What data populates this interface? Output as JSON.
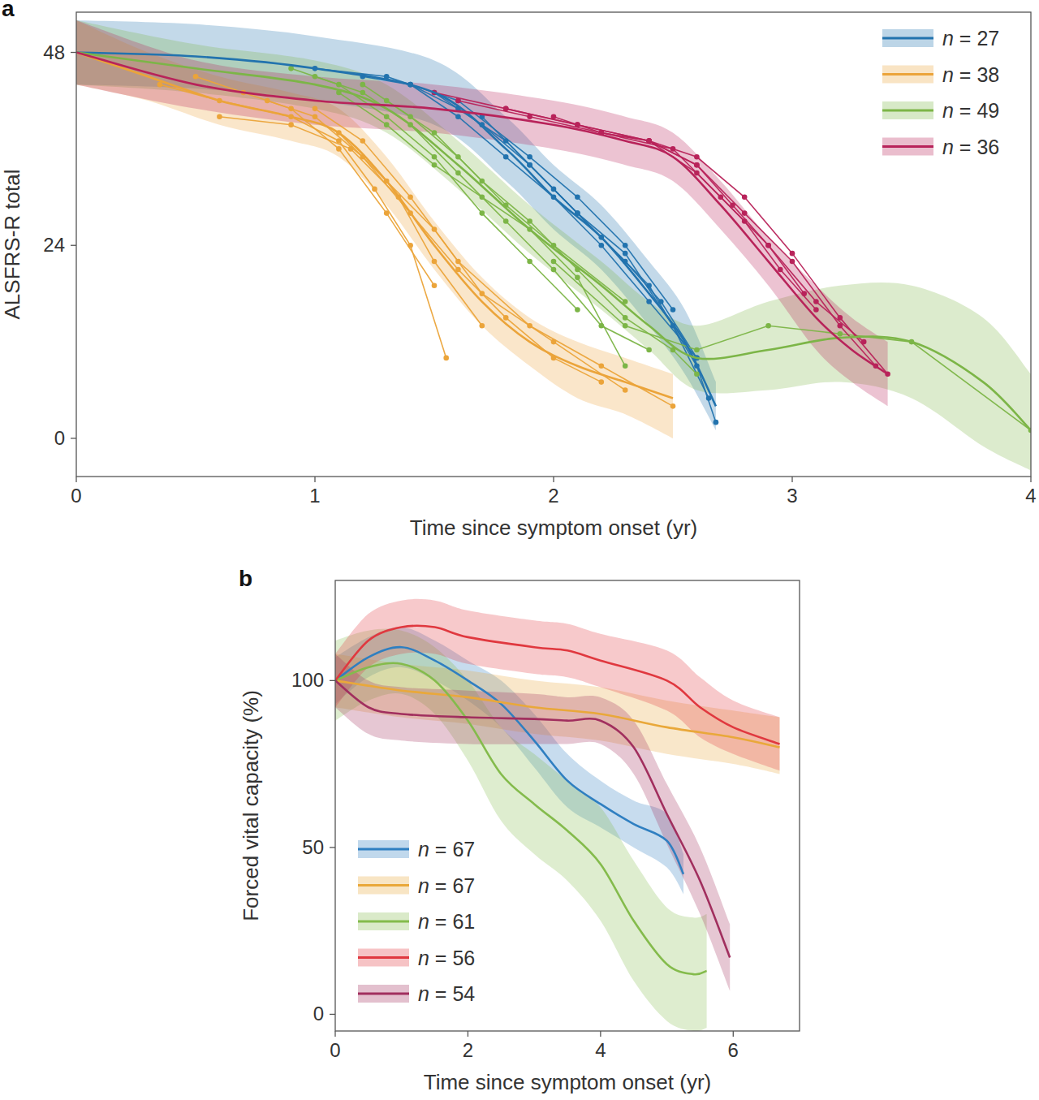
{
  "chart_data": [
    {
      "type": "line",
      "title": "a",
      "x_label": "Time since symptom onset (yr)",
      "y_label": "ALSFRS-R total",
      "xlim": [
        0,
        4
      ],
      "xticks": [
        0,
        1,
        2,
        3,
        4
      ],
      "ylim": [
        -4.75,
        53
      ],
      "yticks": [
        0,
        24,
        48
      ],
      "legend": "upper right",
      "series": [
        {
          "name": "n = 27",
          "color": "#2273ae",
          "x": [
            0,
            0.5,
            1.0,
            1.5,
            1.8,
            2.0,
            2.2,
            2.4,
            2.55,
            2.68
          ],
          "values": [
            48,
            47.5,
            46,
            43,
            36,
            30,
            25,
            18,
            12,
            4
          ],
          "lower": [
            44,
            43.5,
            42,
            39,
            32,
            26,
            21,
            14,
            8,
            1
          ],
          "upper": [
            52,
            51.5,
            50,
            47,
            40,
            34,
            29,
            22,
            16,
            7
          ],
          "patients": [
            {
              "x": [
                1.2,
                1.4,
                1.6,
                1.8,
                2.0,
                2.2,
                2.4,
                2.6
              ],
              "values": [
                45,
                44,
                40,
                35,
                30,
                24,
                17,
                10
              ]
            },
            {
              "x": [
                1.4,
                1.6,
                1.8,
                2.0,
                2.2,
                2.4,
                2.6,
                2.68
              ],
              "values": [
                44,
                41,
                37,
                31,
                25,
                19,
                9,
                2
              ]
            },
            {
              "x": [
                1.0,
                1.3,
                1.6,
                1.9,
                2.1,
                2.3,
                2.5
              ],
              "values": [
                46,
                45,
                42,
                35,
                30,
                24,
                16
              ]
            },
            {
              "x": [
                1.5,
                1.7,
                1.9,
                2.1,
                2.3,
                2.45,
                2.6
              ],
              "values": [
                43,
                39,
                34,
                28,
                22,
                17,
                10
              ]
            },
            {
              "x": [
                1.7,
                1.9,
                2.1,
                2.3,
                2.5,
                2.65
              ],
              "values": [
                40,
                34,
                28,
                23,
                14,
                5
              ]
            }
          ]
        },
        {
          "name": "n = 38",
          "color": "#eba43a",
          "x": [
            0,
            0.3,
            0.6,
            0.9,
            1.1,
            1.3,
            1.5,
            1.7,
            1.9,
            2.1,
            2.3,
            2.5
          ],
          "values": [
            48,
            45,
            42,
            40,
            38,
            32,
            24,
            17,
            12,
            9,
            7,
            5
          ],
          "lower": [
            44,
            42,
            39,
            37,
            35,
            29,
            21,
            14,
            9,
            5,
            3,
            0
          ],
          "upper": [
            52,
            48,
            45,
            43,
            41,
            35,
            27,
            20,
            15,
            12,
            10,
            8
          ],
          "patients": [
            {
              "x": [
                0.5,
                0.7,
                0.9,
                1.1,
                1.3,
                1.5
              ],
              "values": [
                45,
                43,
                41,
                36,
                28,
                19
              ]
            },
            {
              "x": [
                0.35,
                0.6,
                0.9,
                1.1,
                1.25,
                1.4,
                1.55
              ],
              "values": [
                44,
                42,
                40,
                37,
                31,
                24,
                10
              ]
            },
            {
              "x": [
                0.8,
                1.0,
                1.2,
                1.4,
                1.6,
                1.8,
                2.0,
                2.2
              ],
              "values": [
                42,
                40,
                35,
                28,
                21,
                15,
                10,
                7
              ]
            },
            {
              "x": [
                1.0,
                1.2,
                1.4,
                1.6,
                1.9,
                2.2,
                2.5
              ],
              "values": [
                41,
                37,
                30,
                22,
                14,
                9,
                4
              ]
            },
            {
              "x": [
                0.6,
                0.9,
                1.15,
                1.35,
                1.5,
                1.7
              ],
              "values": [
                40,
                39,
                36,
                30,
                22,
                14
              ]
            },
            {
              "x": [
                1.1,
                1.3,
                1.5,
                1.7,
                2.0,
                2.3
              ],
              "values": [
                38,
                32,
                26,
                18,
                12,
                6
              ]
            }
          ]
        },
        {
          "name": "n = 49",
          "color": "#7cb547",
          "x": [
            0,
            0.5,
            1.0,
            1.3,
            1.6,
            1.9,
            2.2,
            2.4,
            2.6,
            2.9,
            3.2,
            3.5,
            3.8,
            4.0
          ],
          "values": [
            48,
            46,
            44,
            41,
            34,
            26,
            19,
            14,
            10,
            11,
            12.5,
            12,
            7,
            1
          ],
          "lower": [
            44,
            43,
            41,
            38,
            31,
            23,
            16,
            11,
            6,
            6,
            7,
            5,
            -1,
            -4
          ],
          "upper": [
            52,
            49,
            47,
            44,
            37,
            29,
            22,
            17,
            14,
            17,
            19,
            19,
            15,
            8
          ],
          "patients": [
            {
              "x": [
                0.9,
                1.1,
                1.3,
                1.5,
                1.7,
                1.9,
                2.1
              ],
              "values": [
                46,
                44,
                40,
                35,
                28,
                22,
                16
              ]
            },
            {
              "x": [
                1.0,
                1.2,
                1.4,
                1.6,
                1.8,
                2.0,
                2.2,
                2.4
              ],
              "values": [
                45,
                43,
                39,
                33,
                27,
                21,
                14,
                11
              ]
            },
            {
              "x": [
                1.3,
                1.5,
                1.7,
                1.9,
                2.1,
                2.3,
                2.5,
                2.6
              ],
              "values": [
                42,
                38,
                32,
                27,
                21,
                15,
                11,
                8
              ]
            },
            {
              "x": [
                1.2,
                1.4,
                1.6,
                1.8,
                2.0,
                2.3
              ],
              "values": [
                44,
                40,
                35,
                29,
                24,
                17
              ]
            },
            {
              "x": [
                2.0,
                2.3,
                2.6,
                2.9,
                3.2,
                3.5,
                4.0
              ],
              "values": [
                22,
                14,
                11,
                14,
                13,
                12,
                1
              ]
            },
            {
              "x": [
                1.1,
                1.3,
                1.5,
                1.7,
                1.9,
                2.1,
                2.3
              ],
              "values": [
                43,
                39,
                34,
                30,
                26,
                20,
                9
              ]
            }
          ]
        },
        {
          "name": "n = 36",
          "color": "#b8235a",
          "x": [
            0,
            0.5,
            1.0,
            1.5,
            2.0,
            2.3,
            2.5,
            2.7,
            2.9,
            3.1,
            3.25,
            3.4
          ],
          "values": [
            48,
            44,
            42,
            41,
            39,
            37,
            35,
            29,
            22,
            15,
            11,
            8
          ],
          "lower": [
            44,
            41,
            39,
            38,
            36,
            34,
            32,
            26,
            19,
            11,
            7,
            4
          ],
          "upper": [
            52,
            47,
            45,
            44,
            42,
            40,
            38,
            32,
            25,
            19,
            15,
            12
          ],
          "patients": [
            {
              "x": [
                1.6,
                1.9,
                2.2,
                2.5,
                2.7,
                2.9,
                3.1,
                3.3
              ],
              "values": [
                42,
                40,
                38,
                36,
                30,
                24,
                17,
                12
              ]
            },
            {
              "x": [
                2.0,
                2.2,
                2.4,
                2.6,
                2.8,
                3.0,
                3.2,
                3.4
              ],
              "values": [
                40,
                38,
                37,
                35,
                30,
                23,
                15,
                8
              ]
            },
            {
              "x": [
                1.8,
                2.1,
                2.4,
                2.6,
                2.8,
                2.95,
                3.1
              ],
              "values": [
                41,
                39,
                37,
                33,
                27,
                21,
                16
              ]
            },
            {
              "x": [
                2.2,
                2.4,
                2.6,
                2.8,
                3.0,
                3.2,
                3.35
              ],
              "values": [
                38,
                37,
                34,
                28,
                22,
                14,
                9
              ]
            },
            {
              "x": [
                1.5,
                1.8,
                2.1,
                2.4,
                2.6,
                2.75,
                2.9,
                3.05
              ],
              "values": [
                43,
                41,
                39,
                37,
                34,
                29,
                24,
                18
              ]
            }
          ]
        }
      ]
    },
    {
      "type": "line",
      "title": "b",
      "x_label": "Time since symptom onset (yr)",
      "y_label": "Forced vital capacity (%)",
      "xlim": [
        0,
        7
      ],
      "xticks": [
        0,
        2,
        4,
        6
      ],
      "ylim": [
        -5,
        130
      ],
      "yticks": [
        0,
        50,
        100
      ],
      "legend": "lower left",
      "series": [
        {
          "name": "n = 67",
          "color": "#2f7fc1",
          "x": [
            0,
            0.5,
            1.0,
            1.5,
            2.0,
            2.5,
            3.0,
            3.5,
            4.0,
            4.5,
            5.0,
            5.25
          ],
          "values": [
            100,
            107,
            110,
            106,
            100,
            93,
            82,
            70,
            63,
            57,
            52,
            42
          ],
          "lower": [
            93,
            101,
            104,
            100,
            94,
            86,
            74,
            62,
            56,
            50,
            44,
            36
          ],
          "upper": [
            107,
            113,
            116,
            112,
            106,
            100,
            90,
            78,
            70,
            64,
            60,
            48
          ]
        },
        {
          "name": "n = 67",
          "color": "#e9a83a",
          "x": [
            0,
            1,
            2,
            3,
            4,
            5,
            6,
            6.7
          ],
          "values": [
            100,
            97,
            95,
            92,
            90,
            86,
            83,
            80
          ],
          "lower": [
            92,
            89,
            87,
            84,
            82,
            78,
            75,
            72
          ],
          "upper": [
            108,
            105,
            103,
            100,
            98,
            94,
            91,
            89
          ]
        },
        {
          "name": "n = 61",
          "color": "#84bb4c",
          "x": [
            0,
            0.5,
            1.0,
            1.5,
            2.0,
            2.5,
            3.0,
            3.5,
            4.0,
            4.5,
            5.0,
            5.4,
            5.6
          ],
          "values": [
            100,
            104,
            105,
            100,
            88,
            72,
            63,
            55,
            45,
            28,
            15,
            12,
            13
          ],
          "lower": [
            88,
            94,
            96,
            90,
            76,
            58,
            48,
            40,
            28,
            10,
            -2,
            -5,
            -4
          ],
          "upper": [
            112,
            115,
            115,
            110,
            100,
            86,
            78,
            70,
            62,
            46,
            32,
            29,
            30
          ]
        },
        {
          "name": "n = 56",
          "color": "#e0383f",
          "x": [
            0,
            0.5,
            1.0,
            1.5,
            2.0,
            3.0,
            3.5,
            4.0,
            5.0,
            5.5,
            6.0,
            6.7
          ],
          "values": [
            100,
            112,
            116,
            116,
            113,
            110,
            109,
            106,
            100,
            92,
            86,
            81
          ],
          "lower": [
            92,
            104,
            108,
            108,
            105,
            102,
            101,
            98,
            91,
            83,
            78,
            73
          ],
          "upper": [
            108,
            120,
            124,
            124,
            121,
            118,
            117,
            114,
            109,
            101,
            94,
            89
          ]
        },
        {
          "name": "n = 54",
          "color": "#a12f5e",
          "x": [
            0,
            0.5,
            1.0,
            2.0,
            3.0,
            3.5,
            4.0,
            4.5,
            5.0,
            5.5,
            5.95
          ],
          "values": [
            100,
            92,
            90,
            89,
            88.5,
            88,
            88,
            80,
            60,
            40,
            17
          ],
          "lower": [
            92,
            84,
            82,
            81,
            81,
            81,
            81,
            72,
            51,
            30,
            7
          ],
          "upper": [
            108,
            100,
            98,
            97,
            96,
            95,
            95,
            88,
            69,
            50,
            27
          ]
        }
      ]
    }
  ]
}
